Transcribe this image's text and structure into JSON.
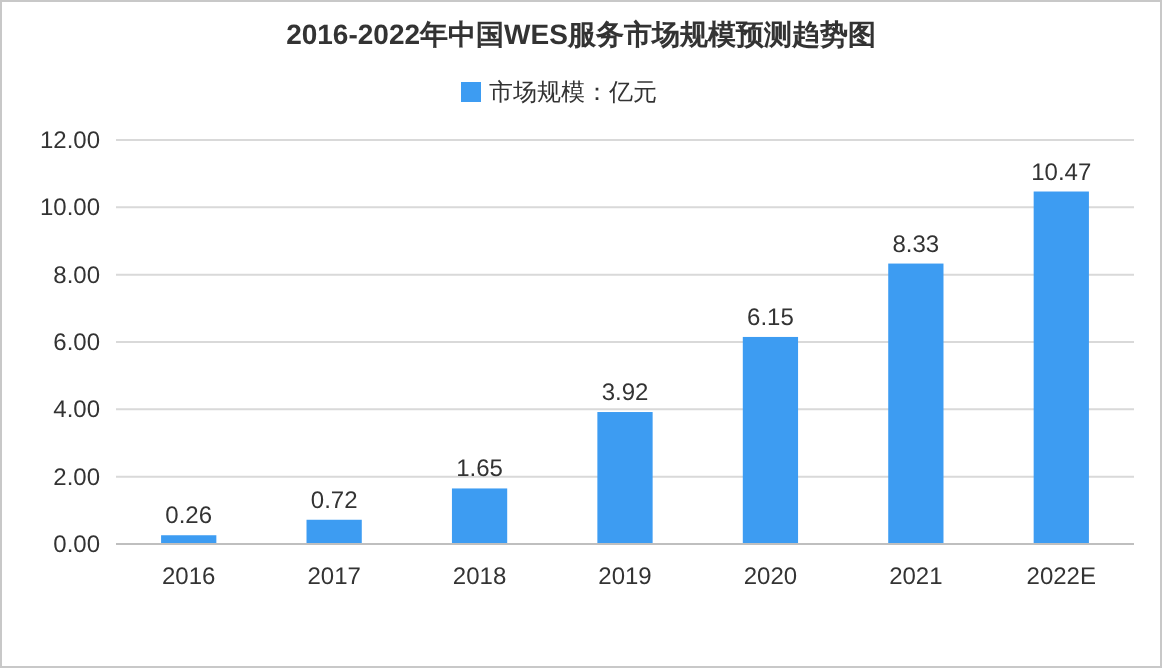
{
  "chart_data": {
    "type": "bar",
    "title": "2016-2022年中国WES服务市场规模预测趋势图",
    "categories": [
      "2016",
      "2017",
      "2018",
      "2019",
      "2020",
      "2021",
      "2022E"
    ],
    "series": [
      {
        "name": "市场规模：亿元",
        "color": "#3d9cf2",
        "values": [
          0.26,
          0.72,
          1.65,
          3.92,
          6.15,
          8.33,
          10.47
        ]
      }
    ],
    "ylim": [
      0,
      12
    ],
    "yticks": [
      {
        "value": 0,
        "label": "0.00"
      },
      {
        "value": 2,
        "label": "2.00"
      },
      {
        "value": 4,
        "label": "4.00"
      },
      {
        "value": 6,
        "label": "6.00"
      },
      {
        "value": 8,
        "label": "8.00"
      },
      {
        "value": 10,
        "label": "10.00"
      },
      {
        "value": 12,
        "label": "12.00"
      }
    ],
    "grid": "y",
    "legend": "top",
    "data_labels": true
  }
}
